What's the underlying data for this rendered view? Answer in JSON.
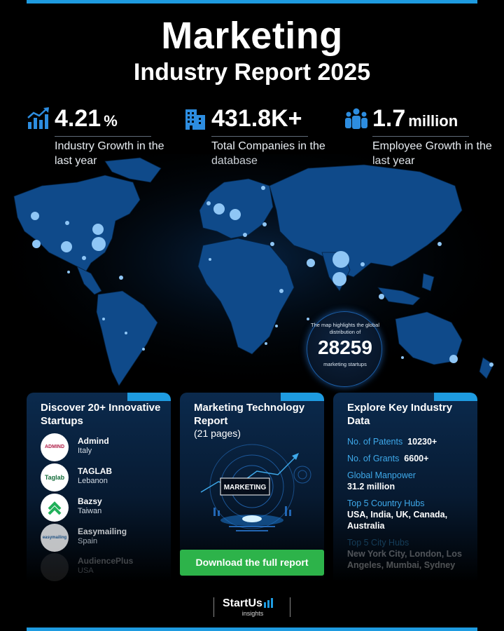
{
  "title": {
    "line1": "Marketing",
    "line2": "Industry Report 2025"
  },
  "stats": [
    {
      "value": "4.21",
      "unit": "%",
      "label": "Industry Growth in the last year",
      "icon": "bar-chart-growth-icon"
    },
    {
      "value": "431.8K+",
      "unit": "",
      "label": "Total Companies in the database",
      "icon": "buildings-icon"
    },
    {
      "value": "1.7",
      "unit": "million",
      "label": "Employee Growth in the last year",
      "icon": "people-icon"
    }
  ],
  "map_callout": {
    "text_top": "The map highlights the global distribution of",
    "number": "28259",
    "text_bottom": "marketing startups"
  },
  "startups_card": {
    "title": "Discover 20+ Innovative Startups",
    "items": [
      {
        "name": "Admind",
        "country": "Italy",
        "logo": "ADMIND"
      },
      {
        "name": "TAGLAB",
        "country": "Lebanon",
        "logo": "Taglab"
      },
      {
        "name": "Bazsy",
        "country": "Taiwan",
        "logo": ""
      },
      {
        "name": "Easymailing",
        "country": "Spain",
        "logo": "easymailing"
      },
      {
        "name": "AudiencePlus",
        "country": "USA",
        "logo": ""
      }
    ]
  },
  "tech_card": {
    "title": "Marketing Technology Report",
    "pages": "(21 pages)",
    "art_label": "MARKETING",
    "button": "Download the full report"
  },
  "data_card": {
    "title": "Explore Key Industry Data",
    "rows": [
      {
        "key": "No. of Patents",
        "value": "10230+"
      },
      {
        "key": "No. of Grants",
        "value": "6600+"
      },
      {
        "key": "Global Manpower",
        "value": "31.2 million"
      },
      {
        "key": "Top 5 Country Hubs",
        "value": "USA, India, UK, Canada, Australia"
      },
      {
        "key": "Top 5 City Hubs",
        "value": "New York City, London, Los Angeles, Mumbai, Sydney"
      }
    ]
  },
  "footer": {
    "brand": "StartUs",
    "sub": "insights"
  },
  "colors": {
    "accent": "#1e9be0",
    "button": "#2db34a",
    "map": "#0f4a8a",
    "key_text": "#3ea9ea"
  }
}
